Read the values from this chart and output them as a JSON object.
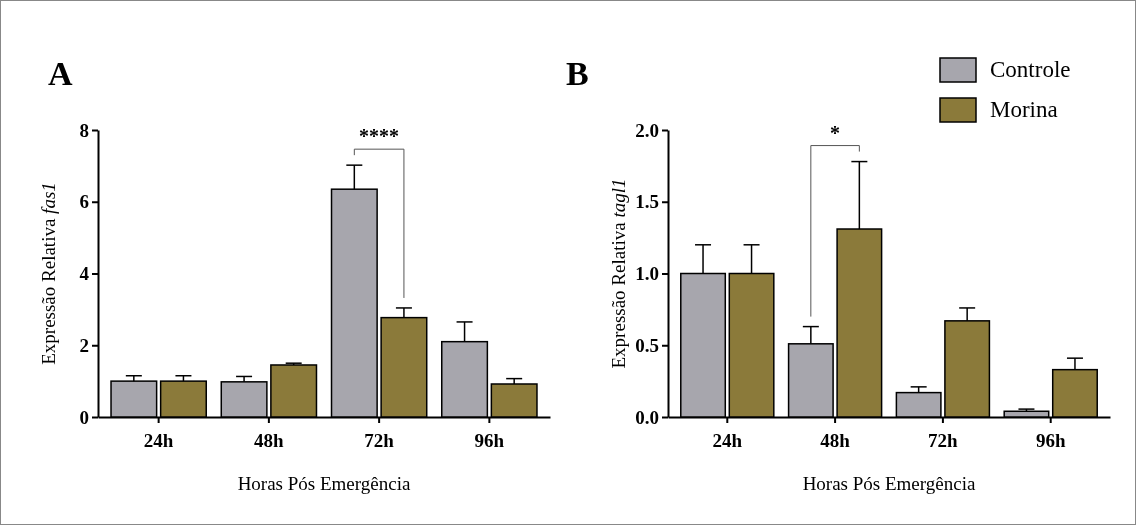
{
  "chart_data": [
    {
      "type": "bar",
      "title": "A",
      "xlabel": "Horas Pós Emergência",
      "ylabel": "Expressão Relativa fas1",
      "categories": [
        "24h",
        "48h",
        "72h",
        "96h"
      ],
      "ylim": [
        0,
        8
      ],
      "yticks": [
        0,
        2,
        4,
        6,
        8
      ],
      "legend": false,
      "series": [
        {
          "color": "#a7a6ad",
          "values": [
            1.0,
            0.98,
            6.35,
            2.1
          ],
          "errors": [
            [
              1.0,
              1.15
            ],
            [
              0.98,
              1.13
            ],
            [
              6.35,
              7.02
            ],
            [
              2.1,
              2.65
            ]
          ]
        },
        {
          "color": "#8b7a3a",
          "values": [
            1.0,
            1.45,
            2.77,
            0.92
          ],
          "errors": [
            [
              1.0,
              1.15
            ],
            [
              1.45,
              1.5
            ],
            [
              2.77,
              3.04
            ],
            [
              0.92,
              1.07
            ]
          ]
        }
      ],
      "annotations": [
        "****"
      ]
    },
    {
      "type": "bar",
      "title": "B",
      "xlabel": "Horas Pós Emergência",
      "ylabel": "Expressão Relativa tagl1",
      "categories": [
        "24h",
        "48h",
        "72h",
        "96h"
      ],
      "ylim": [
        0,
        2
      ],
      "yticks": [
        {
          "value": 0,
          "label": "0.0"
        },
        {
          "value": 0.5,
          "label": "0.5"
        },
        {
          "value": 1,
          "label": "1.0"
        },
        {
          "value": 1.5,
          "label": "1.5"
        },
        {
          "value": 2,
          "label": "2.0"
        }
      ],
      "legend": "top right",
      "series": [
        {
          "name": "Controle",
          "color": "#a7a6ad",
          "values": [
            1.0,
            0.51,
            0.17,
            0.04
          ],
          "errors": [
            [
              1.0,
              1.2
            ],
            [
              0.51,
              0.63
            ],
            [
              0.17,
              0.21
            ],
            [
              0.04,
              0.055
            ]
          ]
        },
        {
          "name": "Morina",
          "color": "#8b7a3a",
          "values": [
            1.0,
            1.31,
            0.67,
            0.33
          ],
          "errors": [
            [
              1.0,
              1.2
            ],
            [
              1.31,
              1.78
            ],
            [
              0.67,
              0.76
            ],
            [
              0.33,
              0.41
            ]
          ]
        }
      ],
      "annotations": [
        "*"
      ]
    }
  ]
}
